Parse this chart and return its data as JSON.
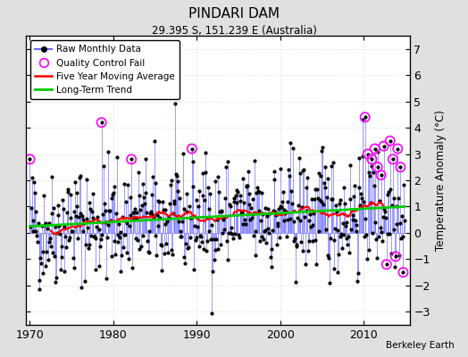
{
  "title": "PINDARI DAM",
  "subtitle": "29.395 S, 151.239 E (Australia)",
  "ylabel": "Temperature Anomaly (°C)",
  "attribution": "Berkeley Earth",
  "xlim": [
    1969.5,
    2015.5
  ],
  "ylim": [
    -3.5,
    7.5
  ],
  "yticks": [
    -3,
    -2,
    -1,
    0,
    1,
    2,
    3,
    4,
    5,
    6,
    7
  ],
  "xticks": [
    1970,
    1980,
    1990,
    2000,
    2010
  ],
  "start_year": 1970,
  "end_year": 2014,
  "background_color": "#e0e0e0",
  "plot_bg_color": "#ffffff",
  "raw_line_color": "#6666ff",
  "raw_dot_color": "#000000",
  "qc_fail_color": "#ff00ff",
  "moving_avg_color": "#ff0000",
  "trend_color": "#00cc00",
  "seed": 42,
  "figsize": [
    5.24,
    4.0
  ],
  "dpi": 100
}
